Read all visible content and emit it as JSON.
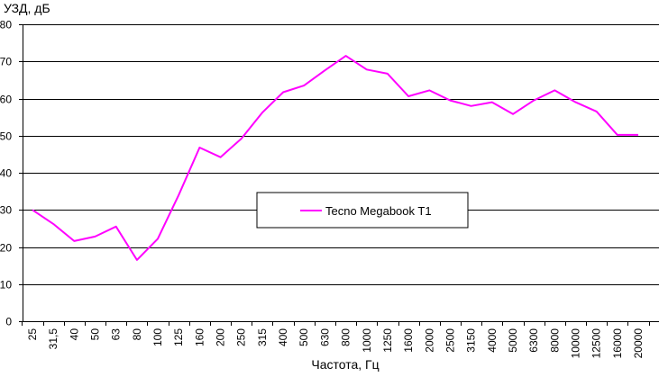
{
  "chart_data": {
    "type": "line",
    "title": "",
    "ylabel": "УЗД, дБ",
    "xlabel": "Частота, Гц",
    "categories": [
      "25",
      "31,5",
      "40",
      "50",
      "63",
      "80",
      "100",
      "125",
      "160",
      "200",
      "250",
      "315",
      "400",
      "500",
      "630",
      "800",
      "1000",
      "1250",
      "1600",
      "2000",
      "2500",
      "3150",
      "4000",
      "5000",
      "6300",
      "8000",
      "10000",
      "12500",
      "16000",
      "20000"
    ],
    "ylim": [
      0,
      80
    ],
    "yticks": [
      0,
      10,
      20,
      30,
      40,
      50,
      60,
      70,
      80
    ],
    "grid": "horizontal",
    "legend_position": "center",
    "series": [
      {
        "name": "Tecno Megabook T1",
        "color": "#ff00ff",
        "values": [
          30.0,
          26.2,
          21.6,
          22.8,
          25.5,
          16.5,
          22.2,
          34.0,
          46.8,
          44.2,
          49.2,
          56.2,
          61.7,
          63.5,
          67.6,
          71.5,
          67.8,
          66.7,
          60.6,
          62.2,
          59.5,
          58.0,
          59.0,
          55.8,
          59.5,
          62.2,
          59.0,
          56.5,
          50.2,
          50.2
        ]
      }
    ]
  }
}
